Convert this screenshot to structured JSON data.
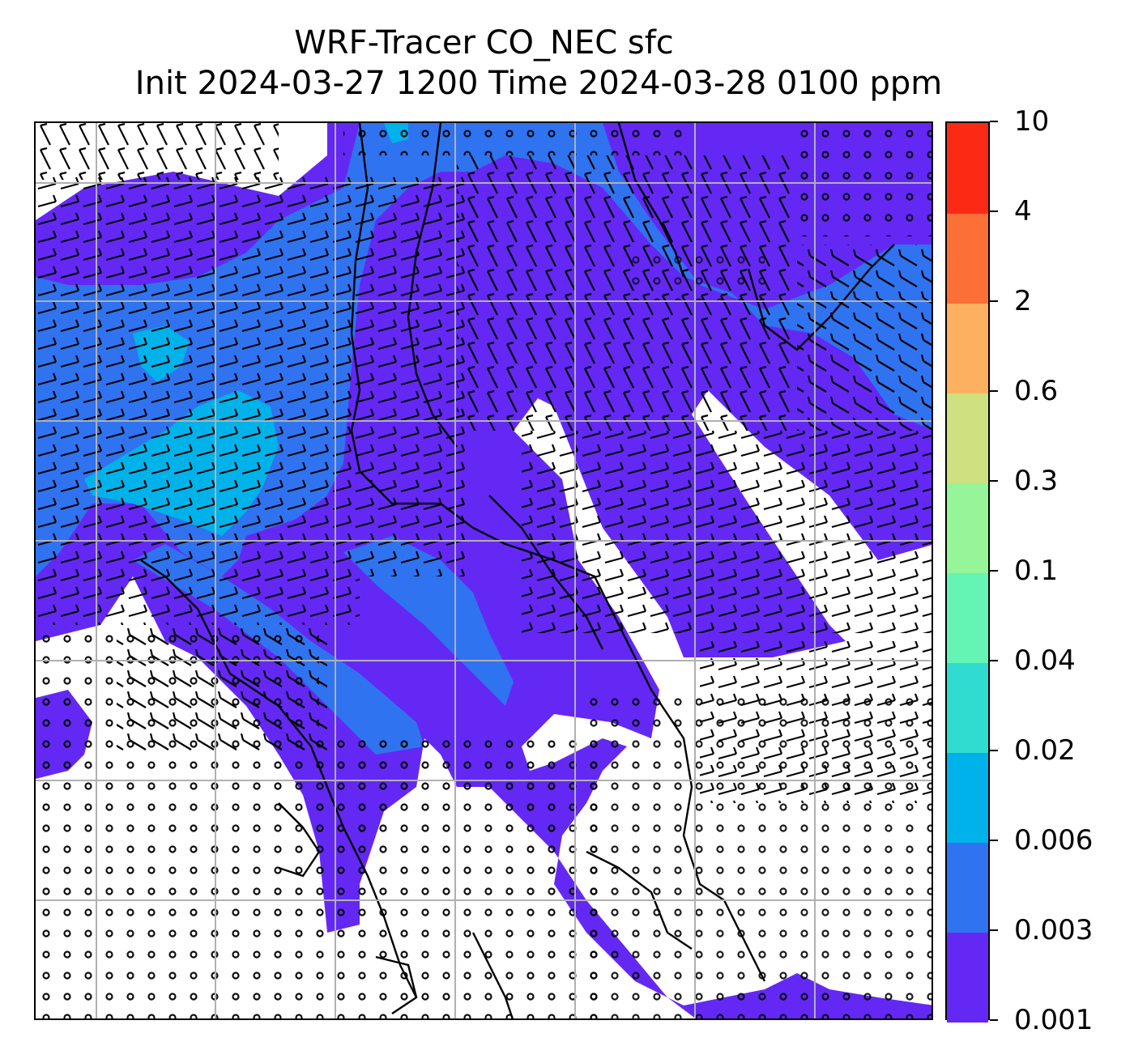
{
  "title": {
    "line1": "WRF-Tracer CO_NEC sfc",
    "line2": "Init 2024-03-27 1200 Time 2024-03-28 0100 ppm"
  },
  "colorbar": {
    "levels": [
      "0.001",
      "0.003",
      "0.006",
      "0.02",
      "0.04",
      "0.1",
      "0.3",
      "0.6",
      "2",
      "4",
      "10"
    ],
    "colors": [
      "#6428f5",
      "#2f73f0",
      "#00b2ea",
      "#30dcd0",
      "#64f5b4",
      "#96f598",
      "#cfe080",
      "#fcb060",
      "#fc7038",
      "#fc2a14"
    ]
  },
  "map": {
    "fill_colors": {
      "lowest": "#6428f5",
      "second": "#2f73f0",
      "third": "#00b2ea",
      "background": "#ffffff"
    },
    "gridlines": "on",
    "wind_barbs": "on",
    "coastlines": "on"
  }
}
